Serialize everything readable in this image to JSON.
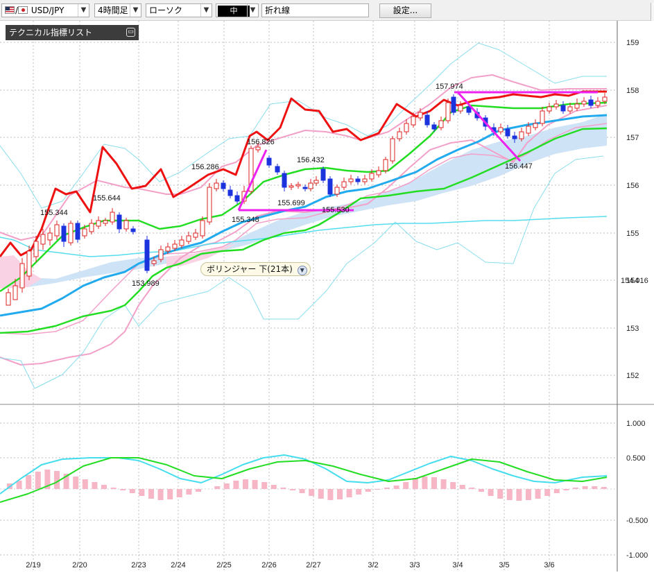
{
  "toolbar": {
    "pair_label": "USD/JPY",
    "timeframe": "4時間足",
    "chart_type": "ローソク",
    "line_width": "中",
    "line_style": "折れ線",
    "settings_label": "設定..."
  },
  "panel": {
    "title": "テクニカル指標リスト",
    "toggle_icon": "minus-icon"
  },
  "tooltip": {
    "text": "ボリンジャー 下(21本)",
    "icon": "chevron-down-icon"
  },
  "price_axis": {
    "labels": [
      "159",
      "158",
      "157",
      "156",
      "155",
      "154",
      "153",
      "152"
    ],
    "current_price": "154.016"
  },
  "macd_axis": {
    "labels": [
      "1.000",
      "0.500",
      "-0.500",
      "-1.000"
    ]
  },
  "dates": [
    "2/19",
    "2/20",
    "2/23",
    "2/24",
    "2/25",
    "2/26",
    "2/27",
    "3/2",
    "3/3",
    "3/4",
    "3/5",
    "3/6"
  ],
  "annotations": [
    "155.344",
    "155.644",
    "153.989",
    "156.286",
    "156.826",
    "155.348",
    "156.432",
    "155.699",
    "155.530",
    "157.974",
    "156.447"
  ],
  "colors": {
    "red_line": "#ee1111",
    "green_line": "#22dd22",
    "blue_line": "#22aaee",
    "pink_line": "#f3a0c8",
    "cloud": "#cfe3f7",
    "drawing": "#ee22ee"
  }
}
